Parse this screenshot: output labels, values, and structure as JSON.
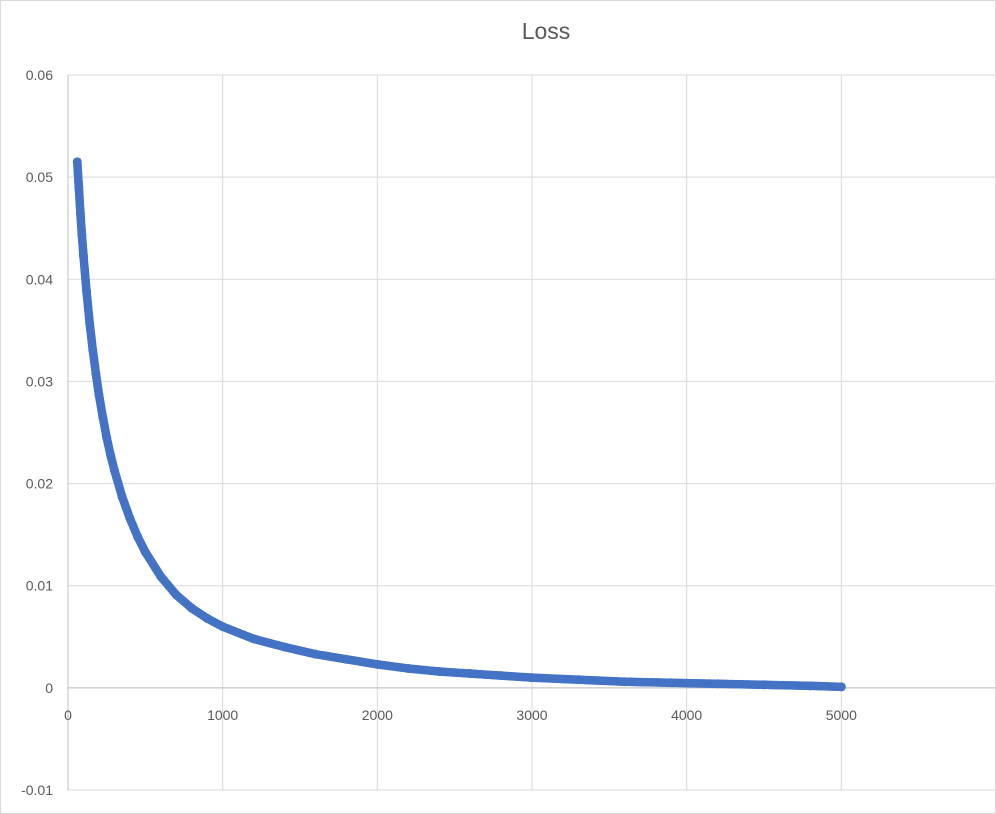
{
  "chart_data": {
    "type": "scatter",
    "title": "Loss",
    "xlabel": "",
    "ylabel": "",
    "xlim": [
      0,
      6000
    ],
    "ylim": [
      -0.01,
      0.06
    ],
    "x_ticks": [
      0,
      1000,
      2000,
      3000,
      4000,
      5000
    ],
    "x_tick_labels": [
      "0",
      "1000",
      "2000",
      "3000",
      "4000",
      "5000"
    ],
    "y_ticks": [
      0.06,
      0.05,
      0.04,
      0.03,
      0.02,
      0.01,
      0,
      -0.01
    ],
    "y_tick_labels": [
      "0.06",
      "0.05",
      "0.04",
      "0.03",
      "0.02",
      "0.01",
      "0",
      "-0.01"
    ],
    "grid": true,
    "legend": "none",
    "marker_color": "#4472C4",
    "series": [
      {
        "x": [
          60,
          70,
          80,
          90,
          100,
          120,
          140,
          160,
          180,
          200,
          225,
          250,
          275,
          300,
          350,
          400,
          450,
          500,
          600,
          700,
          800,
          900,
          1000,
          1200,
          1400,
          1600,
          1800,
          2000,
          2200,
          2400,
          2600,
          2800,
          3000,
          3300,
          3600,
          3900,
          4200,
          4500,
          4800,
          5000
        ],
        "y": [
          0.0515,
          0.049,
          0.0465,
          0.0443,
          0.0423,
          0.0388,
          0.0357,
          0.0331,
          0.0308,
          0.0287,
          0.0265,
          0.0245,
          0.0228,
          0.0213,
          0.0187,
          0.0166,
          0.0148,
          0.0133,
          0.0109,
          0.0091,
          0.0078,
          0.0068,
          0.006,
          0.0048,
          0.004,
          0.0033,
          0.0028,
          0.0023,
          0.0019,
          0.0016,
          0.0014,
          0.0012,
          0.001,
          0.0008,
          0.0006,
          0.0005,
          0.0004,
          0.0003,
          0.0002,
          0.0001
        ]
      }
    ]
  }
}
